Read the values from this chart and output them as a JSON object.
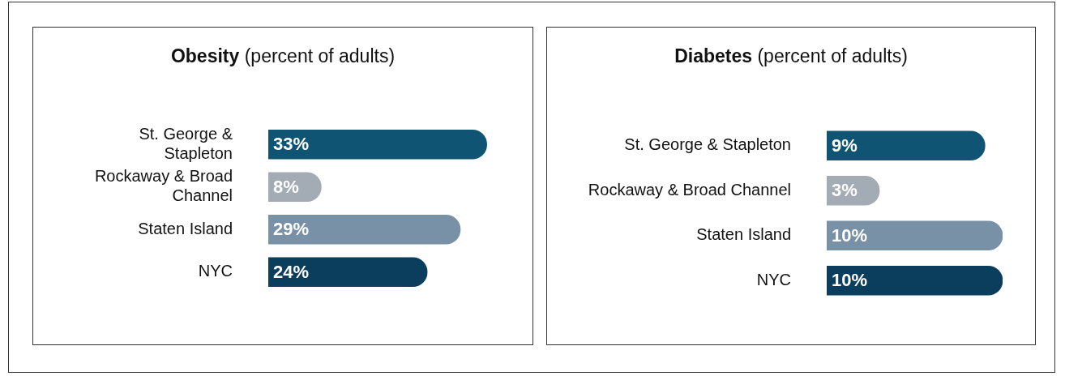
{
  "chart_data": [
    {
      "type": "bar",
      "orientation": "horizontal",
      "title": "Obesity (percent of adults)",
      "categories": [
        "St. George & Stapleton",
        "Rockaway & Broad Channel",
        "Staten Island",
        "NYC"
      ],
      "values": [
        33,
        8,
        29,
        24
      ],
      "value_labels": [
        "33%",
        "8%",
        "29%",
        "24%"
      ],
      "colors": [
        "#0f5573",
        "#a3abb5",
        "#7891a6",
        "#0b3d5c"
      ],
      "tick_labels": "y",
      "legend": false
    },
    {
      "type": "bar",
      "orientation": "horizontal",
      "title": "Diabetes (percent of adults)",
      "categories": [
        "St. George & Stapleton",
        "Rockaway & Broad Channel",
        "Staten Island",
        "NYC"
      ],
      "values": [
        9,
        3,
        10,
        10
      ],
      "value_labels": [
        "9%",
        "3%",
        "10%",
        "10%"
      ],
      "colors": [
        "#0f5573",
        "#a3abb5",
        "#7891a6",
        "#0b3d5c"
      ],
      "tick_labels": "y",
      "legend": false
    }
  ]
}
